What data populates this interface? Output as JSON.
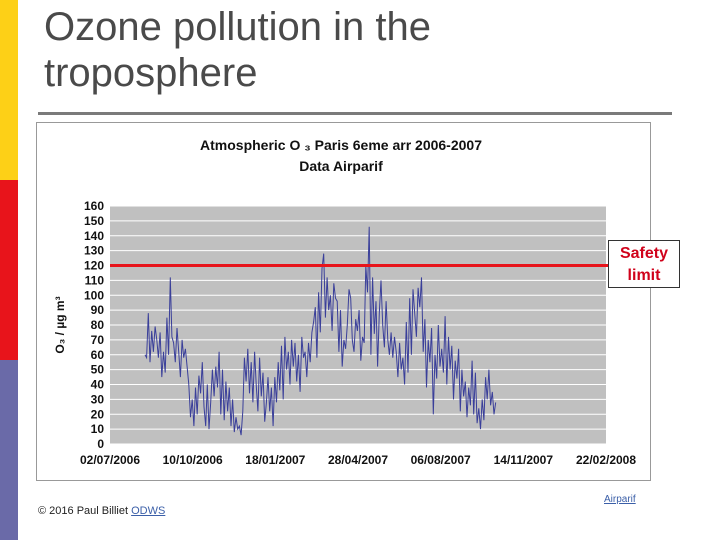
{
  "slide": {
    "title_line1": "Ozone pollution in the",
    "title_line2": "troposphere",
    "copyright": "© 2016 Paul Billiet ",
    "copyright_link": "ODWS",
    "source_link": "Airparif",
    "safety_label_line1": "Safety",
    "safety_label_line2": "limit"
  },
  "colors": {
    "strip_yellow": "#fdd017",
    "strip_red": "#e8141b",
    "strip_blue": "#6a6aa8",
    "plot_bg": "#c0c0c0",
    "series": "#3a3f9a",
    "safety_line": "#e8141b"
  },
  "chart_data": {
    "type": "line",
    "title_line1": "Atmospheric O ₃ Paris 6eme arr 2006-2007",
    "title_line2": "Data Airparif",
    "ylabel": "O₃ / µg m³",
    "xlabel": "",
    "ylim": [
      0,
      160
    ],
    "yticks": [
      0,
      10,
      20,
      30,
      40,
      50,
      60,
      70,
      80,
      90,
      100,
      110,
      120,
      130,
      140,
      150,
      160
    ],
    "xticks": [
      "02/07/2006",
      "10/10/2006",
      "18/01/2007",
      "28/04/2007",
      "06/08/2007",
      "14/11/2007",
      "22/02/2008"
    ],
    "xlim": [
      "2006-07-02",
      "2008-02-22"
    ],
    "grid": true,
    "safety_limit": 120,
    "series": [
      {
        "name": "",
        "values": [
          60,
          58,
          88,
          55,
          76,
          62,
          79,
          70,
          58,
          75,
          45,
          62,
          48,
          85,
          60,
          112,
          72,
          68,
          55,
          78,
          62,
          45,
          70,
          58,
          64,
          52,
          40,
          18,
          30,
          12,
          38,
          20,
          46,
          34,
          55,
          25,
          12,
          40,
          10,
          28,
          50,
          32,
          52,
          38,
          62,
          20,
          50,
          16,
          42,
          22,
          38,
          12,
          30,
          8,
          18,
          10,
          12,
          6,
          22,
          58,
          42,
          64,
          34,
          55,
          28,
          62,
          40,
          22,
          58,
          32,
          48,
          15,
          28,
          45,
          22,
          38,
          12,
          45,
          28,
          55,
          36,
          66,
          30,
          72,
          50,
          62,
          40,
          70,
          52,
          68,
          42,
          60,
          35,
          72,
          58,
          62,
          45,
          68,
          55,
          75,
          82,
          92,
          58,
          102,
          75,
          118,
          128,
          85,
          112,
          90,
          100,
          76,
          108,
          98,
          96,
          62,
          90,
          52,
          70,
          64,
          80,
          104,
          98,
          70,
          62,
          84,
          76,
          90,
          56,
          72,
          68,
          120,
          102,
          146,
          60,
          112,
          74,
          96,
          52,
          88,
          110,
          80,
          65,
          96,
          70,
          60,
          75,
          58,
          72,
          62,
          45,
          68,
          50,
          58,
          40,
          82,
          48,
          98,
          60,
          104,
          88,
          72,
          105,
          92,
          112,
          62,
          84,
          38,
          70,
          55,
          78,
          20,
          60,
          44,
          80,
          52,
          64,
          48,
          86,
          40,
          72,
          50,
          66,
          30,
          56,
          44,
          64,
          22,
          50,
          32,
          42,
          18,
          38,
          26,
          56,
          20,
          48,
          14,
          24,
          10,
          30,
          16,
          45,
          30,
          50,
          26,
          35,
          20,
          28
        ]
      }
    ]
  }
}
